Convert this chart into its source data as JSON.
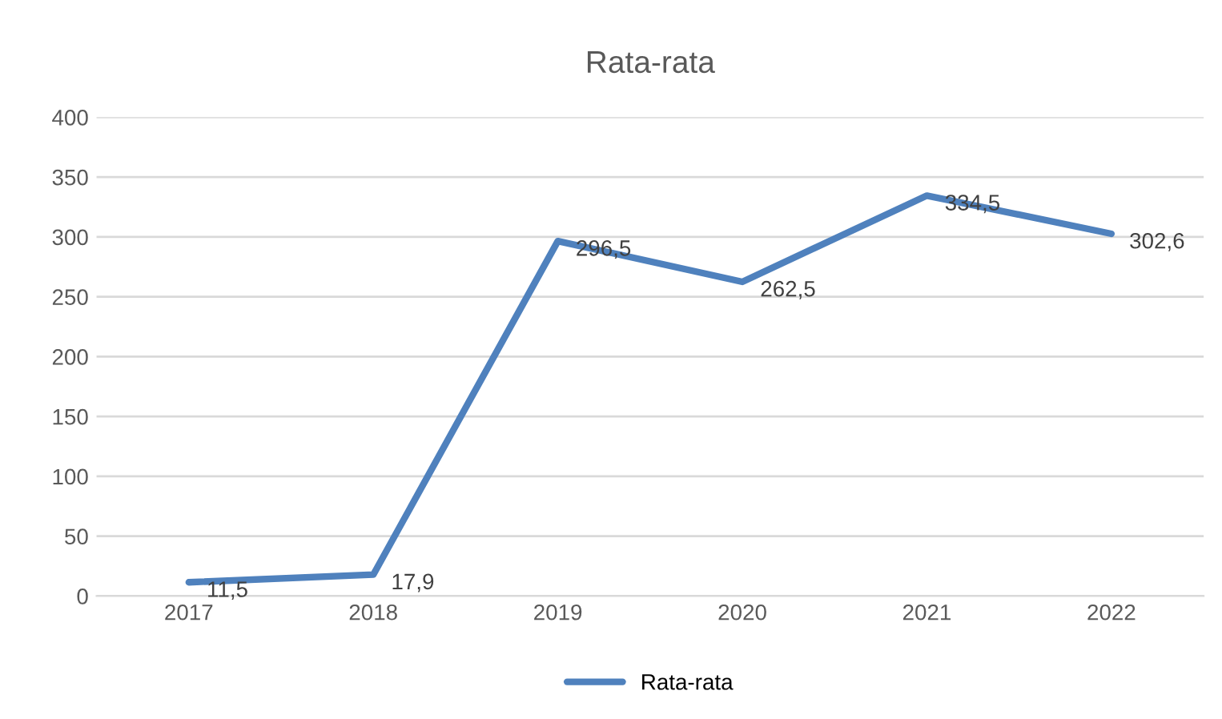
{
  "chart_data": {
    "type": "line",
    "title": "Rata-rata",
    "categories": [
      "2017",
      "2018",
      "2019",
      "2020",
      "2021",
      "2022"
    ],
    "series": [
      {
        "name": "Rata-rata",
        "color": "#4f81bd",
        "values": [
          11.5,
          17.9,
          296.5,
          262.5,
          334.5,
          302.6
        ],
        "value_labels": [
          "11,5",
          "17,9",
          "296,5",
          "262,5",
          "334,5",
          "302,6"
        ]
      }
    ],
    "ylim": [
      0,
      400
    ],
    "yticks": [
      0,
      50,
      100,
      150,
      200,
      250,
      300,
      350,
      400
    ],
    "grid": "y",
    "legend": "bottom",
    "marker": "none",
    "line_style": "solid"
  }
}
